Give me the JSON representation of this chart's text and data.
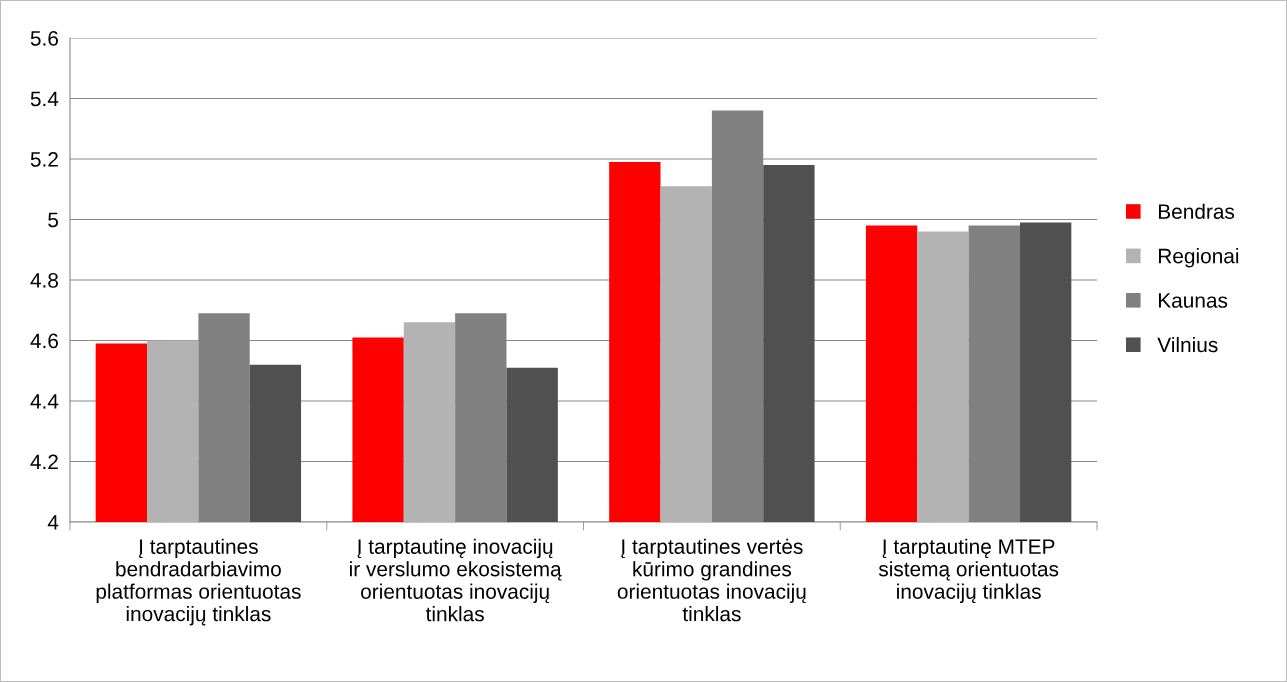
{
  "chart_data": {
    "type": "bar",
    "categories": [
      "Į tarptautines\nbendradarbiavimo\nplatformas orientuotas\ninovacijų tinklas",
      "Į tarptautinę inovacijų\nir verslumo ekosistemą\norientuotas inovacijų\ntinklas",
      "Į tarptautines vertės\nkūrimo grandines\norientuotas inovacijų\ntinklas",
      "Į tarptautinę MTEP\nsistemą orientuotas\ninovacijų tinklas"
    ],
    "series": [
      {
        "name": "Bendras",
        "color": "#ff0000",
        "values": [
          4.59,
          4.61,
          5.19,
          4.98
        ]
      },
      {
        "name": "Regionai",
        "color": "#b3b3b3",
        "values": [
          4.6,
          4.66,
          5.11,
          4.96
        ]
      },
      {
        "name": "Kaunas",
        "color": "#808080",
        "values": [
          4.69,
          4.69,
          5.36,
          4.98
        ]
      },
      {
        "name": "Vilnius",
        "color": "#505050",
        "values": [
          4.52,
          4.51,
          5.18,
          4.99
        ]
      }
    ],
    "ylim": [
      4,
      5.6
    ],
    "yticks": [
      4,
      4.2,
      4.4,
      4.6,
      4.8,
      5,
      5.2,
      5.4,
      5.6
    ],
    "grid": "y",
    "legend": "right"
  }
}
